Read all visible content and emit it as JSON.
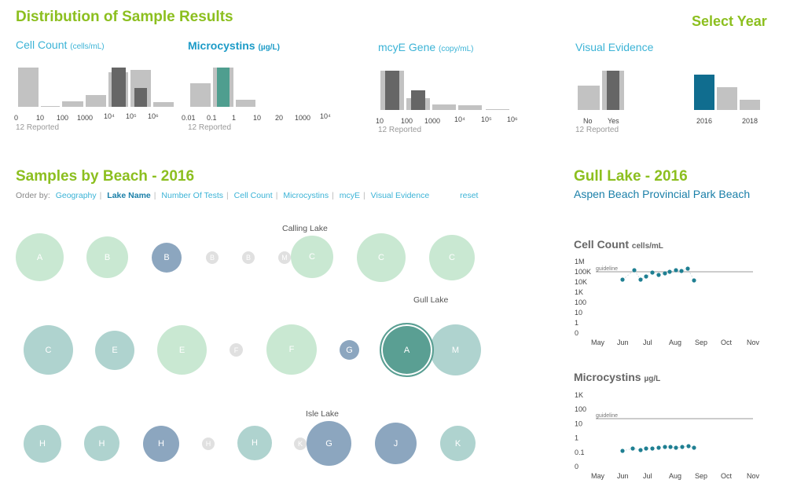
{
  "header": {
    "title": "Distribution of Sample Results",
    "select_year": "Select Year"
  },
  "histograms": {
    "cell_count": {
      "title": "Cell Count",
      "unit": "(cells/mL)",
      "reported": "12 Reported",
      "ticks": [
        "0",
        "10",
        "100",
        "1000",
        "10⁴",
        "10⁵",
        "10⁶"
      ]
    },
    "microcystins": {
      "title": "Microcystins",
      "unit": "(µg/L)",
      "reported": "12 Reported",
      "ticks": [
        "0.01",
        "0.1",
        "1",
        "10",
        "20",
        "1000",
        "10⁴"
      ]
    },
    "mcye": {
      "title": "mcyE Gene",
      "unit": "(copy/mL)",
      "reported": "12 Reported",
      "ticks": [
        "10",
        "100",
        "1000",
        "10⁴",
        "10⁵",
        "10⁶"
      ]
    },
    "visual": {
      "title": "Visual Evidence",
      "reported": "12 Reported",
      "ticks": [
        "No",
        "Yes"
      ]
    },
    "year": {
      "ticks": [
        "2016",
        "2018"
      ]
    }
  },
  "colors": {
    "accent_green": "#8cbf1f",
    "accent_blue": "#1c9bc7",
    "bar_gray": "#c2c2c2",
    "bar_dark": "#666666",
    "bar_teal": "#4f9e8f",
    "bar_year": "#106d8f"
  },
  "samples": {
    "title": "Samples by Beach - 2016",
    "order_label": "Order by:",
    "order_options": [
      "Geography",
      "Lake Name",
      "Number Of Tests",
      "Cell Count",
      "Microcystins",
      "mcyE",
      "Visual Evidence"
    ],
    "active_order": "Lake Name",
    "reset": "reset",
    "lake_labels": [
      "Calling Lake",
      "Gull Lake",
      "Isle Lake"
    ]
  },
  "detail": {
    "title": "Gull Lake - 2016",
    "beach_name": "Aspen Beach Provincial Park Beach"
  },
  "cell_chart": {
    "title": "Cell Count",
    "unit": "cells/mL",
    "guideline_label": "guideline",
    "guideline_value": 100000,
    "y_ticks": [
      "1M",
      "100K",
      "10K",
      "1K",
      "100",
      "10",
      "1",
      "0"
    ],
    "x_ticks": [
      "May",
      "Jun",
      "Jul",
      "Aug",
      "Sep",
      "Oct",
      "Nov"
    ]
  },
  "micro_chart": {
    "title": "Microcystins",
    "unit": "µg/L",
    "guideline_label": "guideline",
    "guideline_value": 20,
    "y_ticks": [
      "1K",
      "100",
      "10",
      "1",
      "0.1",
      "0"
    ],
    "x_ticks": [
      "May",
      "Jun",
      "Jul",
      "Aug",
      "Sep",
      "Oct",
      "Nov"
    ]
  }
}
